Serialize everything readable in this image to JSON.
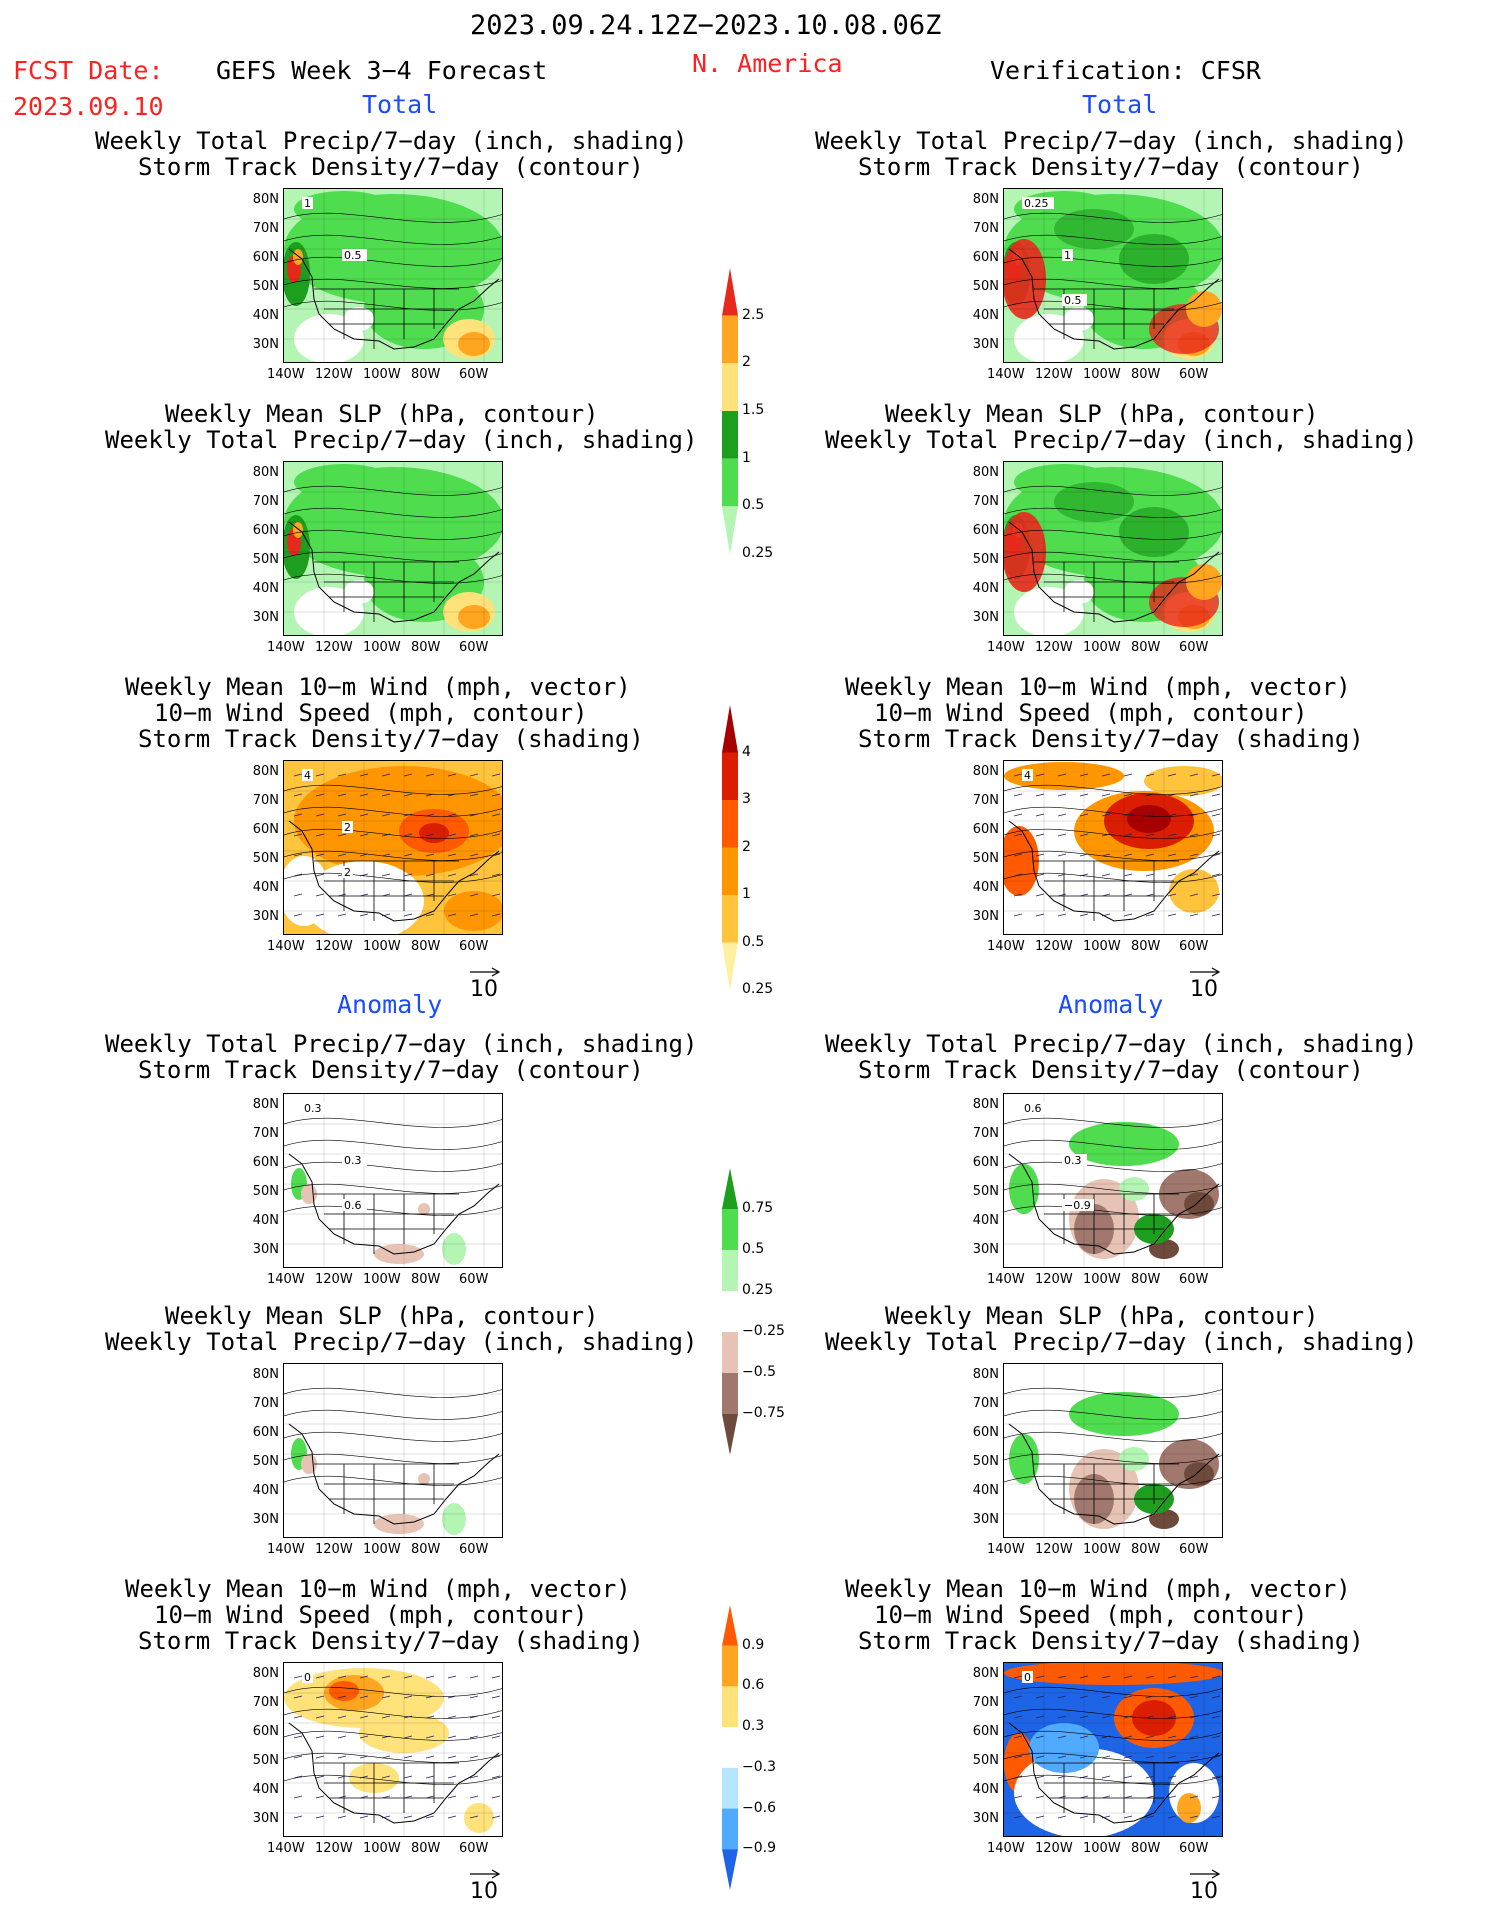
{
  "header": {
    "period": "2023.09.24.12Z−2023.10.08.06Z",
    "fcst_label": "FCST Date:",
    "fcst_date": "2023.09.10",
    "product": "GEFS Week 3−4 Forecast",
    "region": "N. America",
    "verification": "Verification: CFSR"
  },
  "sections": {
    "total": "Total",
    "anomaly": "Anomaly"
  },
  "titles": {
    "precip_track": [
      "Weekly Total Precip/7−day (inch, shading)",
      "Storm Track Density/7−day (contour)"
    ],
    "slp_precip": [
      "Weekly Mean SLP (hPa, contour)",
      "Weekly Total Precip/7−day (inch, shading)"
    ],
    "wind_track": [
      "Weekly Mean 10−m Wind (mph, vector)",
      "10−m Wind Speed (mph, contour)",
      "Storm Track Density/7−day (shading)"
    ]
  },
  "axes": {
    "lat_labels": [
      "80N",
      "70N",
      "60N",
      "50N",
      "40N",
      "30N"
    ],
    "lon_labels": [
      "140W",
      "120W",
      "100W",
      "80W",
      "60W"
    ]
  },
  "vector_ref": "10",
  "contour_labels": {
    "left_total_precip": [
      "1",
      "0.5"
    ],
    "right_total_precip": [
      "0.25",
      "1",
      "0.5"
    ],
    "left_total_wind": [
      "4",
      "2",
      "2"
    ],
    "right_total_wind": [
      "4"
    ],
    "left_anom_precip": [
      "0.3",
      "0.3",
      "0.6"
    ],
    "right_anom_precip": [
      "0.6",
      "0.3",
      "−0.9"
    ],
    "left_anom_wind": [
      "0"
    ],
    "right_anom_wind": [
      "0"
    ]
  },
  "colorbars": {
    "precip_total": {
      "labels": [
        "2.5",
        "2",
        "1.5",
        "1",
        "0.5",
        "0.25"
      ],
      "colors": [
        "#e8281c",
        "#ffa520",
        "#ffe27a",
        "#1e9e1e",
        "#4fdc4f",
        "#b4f5b4"
      ]
    },
    "track_total": {
      "labels": [
        "4",
        "3",
        "2",
        "1",
        "0.5",
        "0.25"
      ],
      "colors": [
        "#a60000",
        "#dc1e00",
        "#ff5a00",
        "#ff9600",
        "#ffc33c",
        "#fff0a0"
      ]
    },
    "precip_anom": {
      "labels": [
        "0.75",
        "0.5",
        "0.25",
        "−0.25",
        "−0.5",
        "−0.75"
      ],
      "colors": [
        "#1e9e1e",
        "#4fdc4f",
        "#b4f5b4",
        "#ffffff",
        "#e6c3b4",
        "#a0786e",
        "#6e4a3c"
      ]
    },
    "track_anom": {
      "labels": [
        "0.9",
        "0.6",
        "0.3",
        "−0.3",
        "−0.6",
        "−0.9"
      ],
      "colors": [
        "#ff5a00",
        "#ffa520",
        "#ffe27a",
        "#ffffff",
        "#b4e6ff",
        "#50aaff",
        "#1e64e6"
      ]
    }
  }
}
